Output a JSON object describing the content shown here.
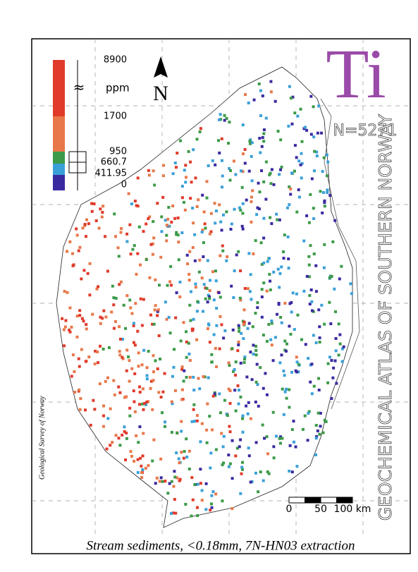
{
  "map": {
    "element": "Ti",
    "count": "N=5271",
    "atlas_title": "GEOCHEMICAL ATLAS OF SOUTHERN NORWAY",
    "north": "N",
    "caption": "Stream sediments, <0.18mm, 7N-HN03 extraction",
    "credit": "Geological Survey of Norway",
    "legend": {
      "unit": "ppm",
      "labels": [
        "8900",
        "1700",
        "950",
        "660.7",
        "411.95",
        "0"
      ],
      "colors": [
        "#e03a2a",
        "#e8784a",
        "#3c9a48",
        "#3aa0d8",
        "#3a2aa0"
      ]
    },
    "scale": {
      "labels": [
        "0",
        "50",
        "100 km"
      ]
    }
  }
}
